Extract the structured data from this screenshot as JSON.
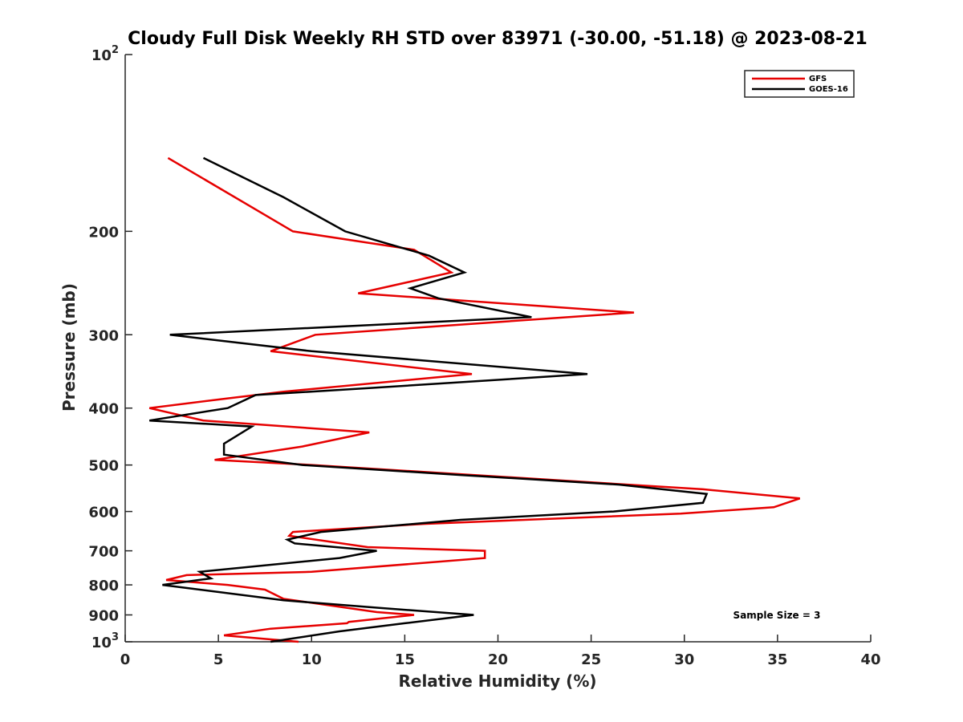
{
  "chart_data": {
    "type": "line",
    "title": "Cloudy Full Disk Weekly RH STD over 83971 (-30.00, -51.18) @ 2023-08-21",
    "xlabel": "Relative Humidity (%)",
    "ylabel": "Pressure (mb)",
    "xlim": [
      0,
      40
    ],
    "ylim": [
      100,
      1000
    ],
    "y_scale": "log",
    "y_reversed": true,
    "x_ticks": [
      "0",
      "5",
      "10",
      "15",
      "20",
      "25",
      "30",
      "35",
      "40"
    ],
    "y_ticks": [
      {
        "value": 100,
        "base": "10",
        "exp": "2"
      },
      {
        "value": 200,
        "label": "200"
      },
      {
        "value": 300,
        "label": "300"
      },
      {
        "value": 400,
        "label": "400"
      },
      {
        "value": 500,
        "label": "500"
      },
      {
        "value": 600,
        "label": "600"
      },
      {
        "value": 700,
        "label": "700"
      },
      {
        "value": 800,
        "label": "800"
      },
      {
        "value": 900,
        "label": "900"
      },
      {
        "value": 1000,
        "base": "10",
        "exp": "3"
      }
    ],
    "legend_position": "top-right",
    "grid": false,
    "series": [
      {
        "name": "GFS",
        "color": "#e60000",
        "points": [
          {
            "p": 150,
            "rh": 2.3
          },
          {
            "p": 200,
            "rh": 9.0
          },
          {
            "p": 215,
            "rh": 15.5
          },
          {
            "p": 235,
            "rh": 17.5
          },
          {
            "p": 255,
            "rh": 12.5
          },
          {
            "p": 275,
            "rh": 27.3
          },
          {
            "p": 300,
            "rh": 10.2
          },
          {
            "p": 320,
            "rh": 7.8
          },
          {
            "p": 350,
            "rh": 18.6
          },
          {
            "p": 375,
            "rh": 8.5
          },
          {
            "p": 385,
            "rh": 5.5
          },
          {
            "p": 400,
            "rh": 1.3
          },
          {
            "p": 420,
            "rh": 4.2
          },
          {
            "p": 440,
            "rh": 13.1
          },
          {
            "p": 465,
            "rh": 9.5
          },
          {
            "p": 490,
            "rh": 4.8
          },
          {
            "p": 500,
            "rh": 10.0
          },
          {
            "p": 550,
            "rh": 31.0
          },
          {
            "p": 570,
            "rh": 36.2
          },
          {
            "p": 590,
            "rh": 34.8
          },
          {
            "p": 605,
            "rh": 29.8
          },
          {
            "p": 630,
            "rh": 16.0
          },
          {
            "p": 650,
            "rh": 9.0
          },
          {
            "p": 660,
            "rh": 8.8
          },
          {
            "p": 690,
            "rh": 13.0
          },
          {
            "p": 700,
            "rh": 19.3
          },
          {
            "p": 720,
            "rh": 19.3
          },
          {
            "p": 760,
            "rh": 10.0
          },
          {
            "p": 770,
            "rh": 3.3
          },
          {
            "p": 785,
            "rh": 2.2
          },
          {
            "p": 800,
            "rh": 5.5
          },
          {
            "p": 815,
            "rh": 7.5
          },
          {
            "p": 845,
            "rh": 8.5
          },
          {
            "p": 890,
            "rh": 13.5
          },
          {
            "p": 900,
            "rh": 15.5
          },
          {
            "p": 925,
            "rh": 12.0
          },
          {
            "p": 930,
            "rh": 11.9
          },
          {
            "p": 950,
            "rh": 7.8
          },
          {
            "p": 975,
            "rh": 5.3
          },
          {
            "p": 1000,
            "rh": 9.3
          }
        ]
      },
      {
        "name": "GOES-16",
        "color": "#000000",
        "points": [
          {
            "p": 150,
            "rh": 4.2
          },
          {
            "p": 175,
            "rh": 8.5
          },
          {
            "p": 200,
            "rh": 11.8
          },
          {
            "p": 220,
            "rh": 16.3
          },
          {
            "p": 235,
            "rh": 18.2
          },
          {
            "p": 250,
            "rh": 15.3
          },
          {
            "p": 260,
            "rh": 16.8
          },
          {
            "p": 280,
            "rh": 21.8
          },
          {
            "p": 290,
            "rh": 12.0
          },
          {
            "p": 300,
            "rh": 2.4
          },
          {
            "p": 320,
            "rh": 10.0
          },
          {
            "p": 350,
            "rh": 24.8
          },
          {
            "p": 370,
            "rh": 13.0
          },
          {
            "p": 380,
            "rh": 7.0
          },
          {
            "p": 400,
            "rh": 5.5
          },
          {
            "p": 420,
            "rh": 1.3
          },
          {
            "p": 430,
            "rh": 6.8
          },
          {
            "p": 460,
            "rh": 5.3
          },
          {
            "p": 480,
            "rh": 5.3
          },
          {
            "p": 500,
            "rh": 9.5
          },
          {
            "p": 520,
            "rh": 18.0
          },
          {
            "p": 540,
            "rh": 26.5
          },
          {
            "p": 560,
            "rh": 31.2
          },
          {
            "p": 580,
            "rh": 31.0
          },
          {
            "p": 600,
            "rh": 26.2
          },
          {
            "p": 620,
            "rh": 18.0
          },
          {
            "p": 650,
            "rh": 10.5
          },
          {
            "p": 670,
            "rh": 8.7
          },
          {
            "p": 680,
            "rh": 9.1
          },
          {
            "p": 700,
            "rh": 13.5
          },
          {
            "p": 720,
            "rh": 11.5
          },
          {
            "p": 760,
            "rh": 4.0
          },
          {
            "p": 780,
            "rh": 4.6
          },
          {
            "p": 800,
            "rh": 2.0
          },
          {
            "p": 850,
            "rh": 8.5
          },
          {
            "p": 875,
            "rh": 13.5
          },
          {
            "p": 900,
            "rh": 18.7
          },
          {
            "p": 930,
            "rh": 15.0
          },
          {
            "p": 960,
            "rh": 11.5
          },
          {
            "p": 1000,
            "rh": 7.8
          }
        ]
      }
    ],
    "annotations": [
      "Sample Size = 3"
    ]
  }
}
